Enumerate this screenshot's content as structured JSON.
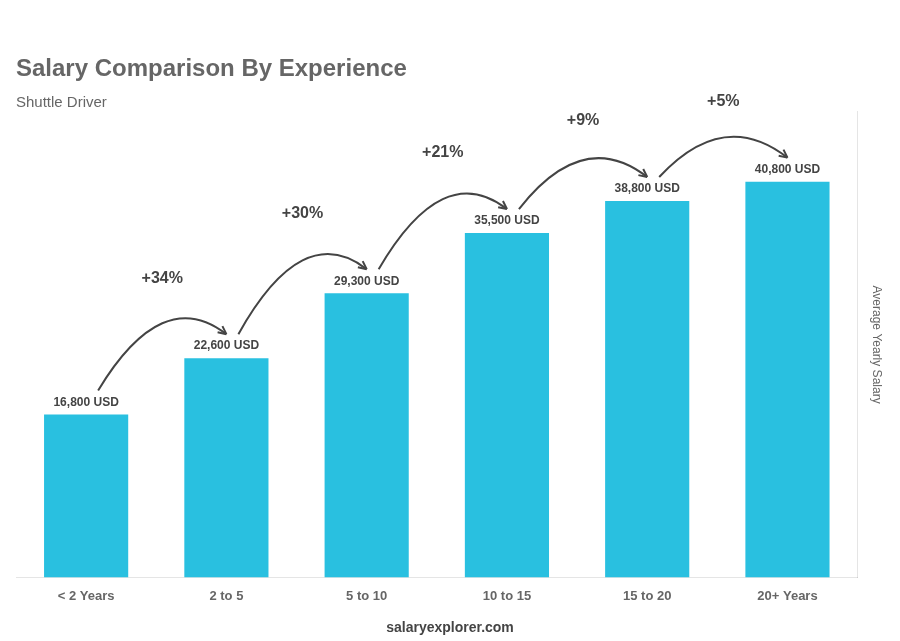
{
  "chart_data": {
    "type": "bar",
    "title": "Salary Comparison By Experience",
    "subtitle": "Shuttle Driver",
    "categories": [
      "< 2 Years",
      "2 to 5",
      "5 to 10",
      "10 to 15",
      "15 to 20",
      "20+ Years"
    ],
    "values": [
      16800,
      22600,
      29300,
      35500,
      38800,
      40800
    ],
    "value_labels": [
      "16,800 USD",
      "22,600 USD",
      "29,300 USD",
      "35,500 USD",
      "38,800 USD",
      "40,800 USD"
    ],
    "data_labels": true,
    "color": "#29c0e0",
    "ylabel": "Average Yearly Salary",
    "ylim": [
      0,
      48000
    ],
    "grid": false,
    "tick_labels": "x",
    "annotations": [
      "+34%",
      "+30%",
      "+21%",
      "+9%",
      "+5%"
    ],
    "footer": "salaryexplorer.com"
  }
}
